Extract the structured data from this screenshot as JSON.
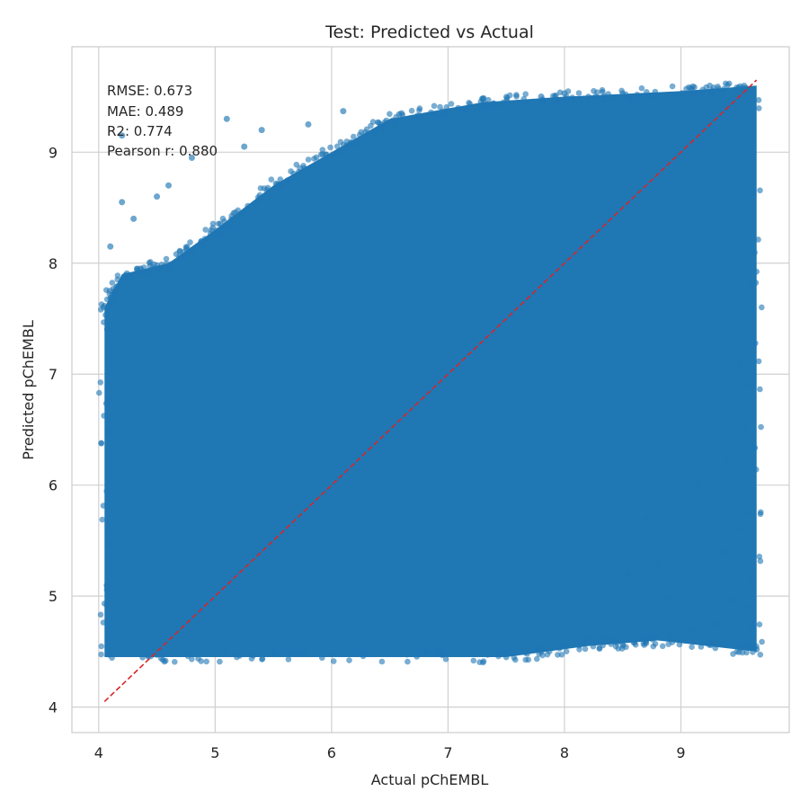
{
  "chart_data": {
    "type": "scatter",
    "title": "Test: Predicted vs Actual",
    "xlabel": "Actual pChEMBL",
    "ylabel": "Predicted pChEMBL",
    "xlim": [
      3.77,
      9.93
    ],
    "ylim": [
      3.77,
      9.95
    ],
    "xticks": [
      4,
      5,
      6,
      7,
      8,
      9
    ],
    "yticks": [
      4,
      5,
      6,
      7,
      8,
      9
    ],
    "grid": true,
    "colors": {
      "points": "#1f77b4",
      "reference_line": "#d62728",
      "grid": "#d0d0d0",
      "axes_edge": "#cccccc"
    },
    "reference_line": {
      "name": "y = x",
      "x": [
        4.05,
        9.65
      ],
      "y": [
        4.05,
        9.65
      ],
      "style": "dashed"
    },
    "annotations": [
      "RMSE: 0.673",
      "MAE: 0.489",
      "R2: 0.774",
      "Pearson r: 0.880"
    ],
    "series": [
      {
        "description": "dense point cloud, approximated by its outline",
        "cloud_outline": [
          [
            4.05,
            4.45
          ],
          [
            5.5,
            4.45
          ],
          [
            7.5,
            4.45
          ],
          [
            8.2,
            4.55
          ],
          [
            8.8,
            4.6
          ],
          [
            9.65,
            4.5
          ],
          [
            9.65,
            9.6
          ],
          [
            9.0,
            9.55
          ],
          [
            8.0,
            9.5
          ],
          [
            7.3,
            9.45
          ],
          [
            6.5,
            9.3
          ],
          [
            6.0,
            9.0
          ],
          [
            5.5,
            8.7
          ],
          [
            5.0,
            8.3
          ],
          [
            4.6,
            8.0
          ],
          [
            4.2,
            7.9
          ],
          [
            4.05,
            7.6
          ]
        ],
        "outliers": [
          [
            4.2,
            8.55
          ],
          [
            4.3,
            8.4
          ],
          [
            4.5,
            8.6
          ],
          [
            4.8,
            8.95
          ],
          [
            5.1,
            9.3
          ],
          [
            5.4,
            9.2
          ],
          [
            5.8,
            9.25
          ],
          [
            6.1,
            9.37
          ],
          [
            6.6,
            9.35
          ],
          [
            7.3,
            9.48
          ],
          [
            7.8,
            9.5
          ],
          [
            8.0,
            9.53
          ],
          [
            4.2,
            9.15
          ],
          [
            4.6,
            8.7
          ],
          [
            5.25,
            9.05
          ],
          [
            6.95,
            4.47
          ],
          [
            7.8,
            4.5
          ],
          [
            8.2,
            4.62
          ],
          [
            8.45,
            4.58
          ],
          [
            8.7,
            4.6
          ],
          [
            8.9,
            4.98
          ],
          [
            9.1,
            4.7
          ],
          [
            9.3,
            4.75
          ],
          [
            9.45,
            4.97
          ],
          [
            9.6,
            4.75
          ],
          [
            9.6,
            4.9
          ],
          [
            9.65,
            4.52
          ],
          [
            9.2,
            5.05
          ],
          [
            9.0,
            5.25
          ],
          [
            8.8,
            5.3
          ],
          [
            9.5,
            5.6
          ],
          [
            9.35,
            5.4
          ],
          [
            9.15,
            6.0
          ],
          [
            9.55,
            5.75
          ],
          [
            8.7,
            5.7
          ],
          [
            8.55,
            5.2
          ],
          [
            9.4,
            6.2
          ],
          [
            9.55,
            6.5
          ],
          [
            9.5,
            7.1
          ],
          [
            9.6,
            6.9
          ],
          [
            4.08,
            7.3
          ],
          [
            4.1,
            8.15
          ]
        ]
      }
    ]
  }
}
